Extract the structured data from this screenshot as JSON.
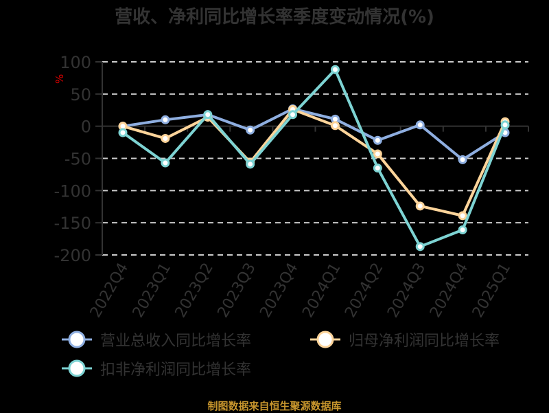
{
  "title": "营收、净利同比增长率季度变动情况(%)",
  "y_unit": "%",
  "source_note": "制图数据来自恒生聚源数据库",
  "chart_data": {
    "type": "line",
    "title": "营收、净利同比增长率季度变动情况(%)",
    "xlabel": "",
    "ylabel": "%",
    "ylim": [
      -200,
      100
    ],
    "yticks": [
      100,
      50,
      0,
      -50,
      -100,
      -150,
      -200
    ],
    "grid": true,
    "legend_position": "bottom",
    "categories": [
      "2022Q4",
      "2023Q1",
      "2023Q2",
      "2023Q3",
      "2023Q4",
      "2024Q1",
      "2024Q2",
      "2024Q3",
      "2024Q4",
      "2025Q1"
    ],
    "series": [
      {
        "name": "营业总收入同比增长率",
        "color": "#8eaee0",
        "values": [
          0,
          10,
          18,
          -6,
          27,
          11,
          -22,
          2,
          -52,
          -10
        ]
      },
      {
        "name": "归母净利润同比增长率",
        "color": "#fdd49a",
        "values": [
          0,
          -19,
          14,
          -56,
          26,
          1,
          -43,
          -124,
          -139,
          7
        ]
      },
      {
        "name": "扣非净利润同比增长率",
        "color": "#7dd3d3",
        "values": [
          -10,
          -57,
          18,
          -59,
          18,
          88,
          -65,
          -187,
          -161,
          2
        ]
      }
    ]
  }
}
